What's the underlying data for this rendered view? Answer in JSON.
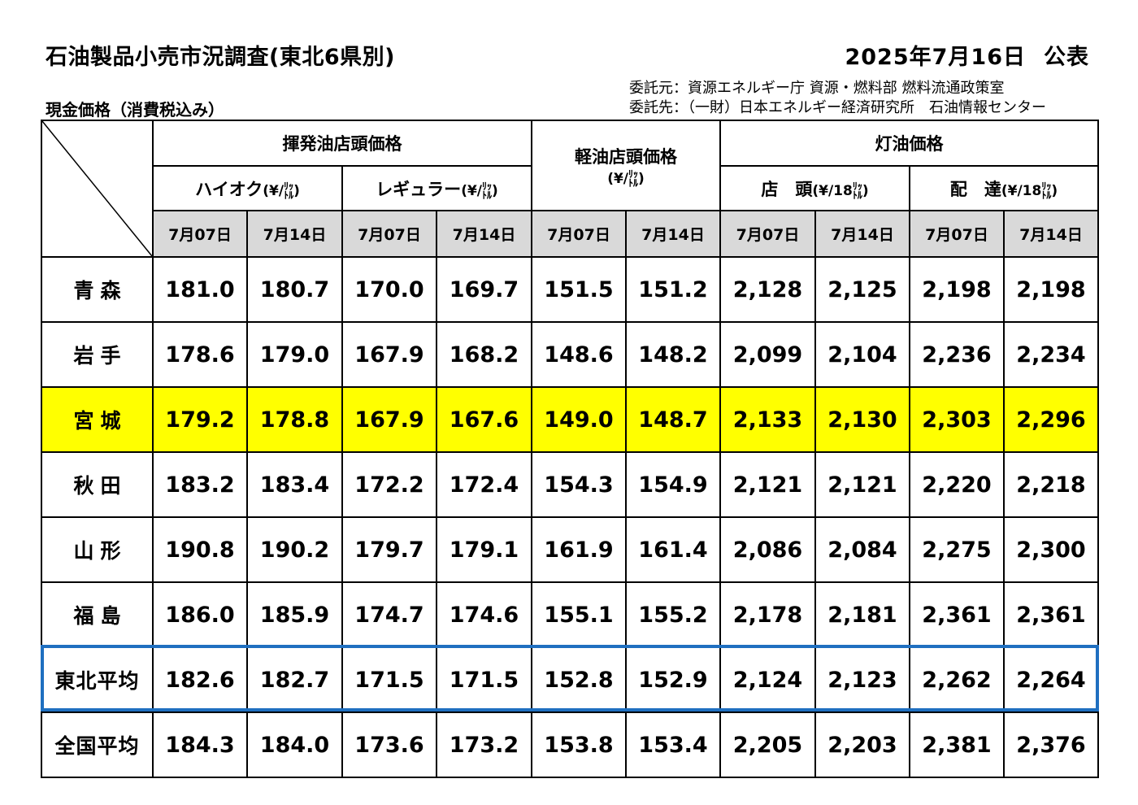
{
  "header": {
    "title": "石油製品小売市況調査(東北6県別)",
    "date": "2025年7月16日",
    "published": "公表",
    "client_line1": "委託元：資源エネルギー庁 資源・燃料部 燃料流通政策室",
    "client_line2": "委託先：（一財）日本エネルギー経済研究所　石油情報センター",
    "subtitle": "現金価格（消費税込み）"
  },
  "columns": {
    "gasoline": "揮発油店頭価格",
    "highoctane": "ハイオク",
    "regular": "レギュラー",
    "diesel": "軽油店頭価格",
    "kerosene": "灯油価格",
    "store": "店　頭",
    "delivery": "配　達",
    "unit_liter": "(¥/",
    "unit_18liter": "(¥/18",
    "unit_liter_small_top": "ﾘｯ",
    "unit_liter_small_bottom": "ﾄﾙ",
    "unit_close": ")",
    "dates": [
      "7月07日",
      "7月14日",
      "7月07日",
      "7月14日",
      "7月07日",
      "7月14日",
      "7月07日",
      "7月14日",
      "7月07日",
      "7月14日"
    ]
  },
  "rows": [
    {
      "pref": "青森",
      "values": [
        "181.0",
        "180.7",
        "170.0",
        "169.7",
        "151.5",
        "151.2",
        "2,128",
        "2,125",
        "2,198",
        "2,198"
      ]
    },
    {
      "pref": "岩手",
      "values": [
        "178.6",
        "179.0",
        "167.9",
        "168.2",
        "148.6",
        "148.2",
        "2,099",
        "2,104",
        "2,236",
        "2,234"
      ]
    },
    {
      "pref": "宮城",
      "values": [
        "179.2",
        "178.8",
        "167.9",
        "167.6",
        "149.0",
        "148.7",
        "2,133",
        "2,130",
        "2,303",
        "2,296"
      ]
    },
    {
      "pref": "秋田",
      "values": [
        "183.2",
        "183.4",
        "172.2",
        "172.4",
        "154.3",
        "154.9",
        "2,121",
        "2,121",
        "2,220",
        "2,218"
      ]
    },
    {
      "pref": "山形",
      "values": [
        "190.8",
        "190.2",
        "179.7",
        "179.1",
        "161.9",
        "161.4",
        "2,086",
        "2,084",
        "2,275",
        "2,300"
      ]
    },
    {
      "pref": "福島",
      "values": [
        "186.0",
        "185.9",
        "174.7",
        "174.6",
        "155.1",
        "155.2",
        "2,178",
        "2,181",
        "2,361",
        "2,361"
      ]
    },
    {
      "pref": "東北平均",
      "values": [
        "182.6",
        "182.7",
        "171.5",
        "171.5",
        "152.8",
        "152.9",
        "2,124",
        "2,123",
        "2,262",
        "2,264"
      ]
    },
    {
      "pref": "全国平均",
      "values": [
        "184.3",
        "184.0",
        "173.6",
        "173.2",
        "153.8",
        "153.4",
        "2,205",
        "2,203",
        "2,381",
        "2,376"
      ]
    }
  ],
  "colors": {
    "highlight": "#ffff00",
    "header_gray": "#d9d9d9",
    "average_box": "#1f6fc0"
  }
}
